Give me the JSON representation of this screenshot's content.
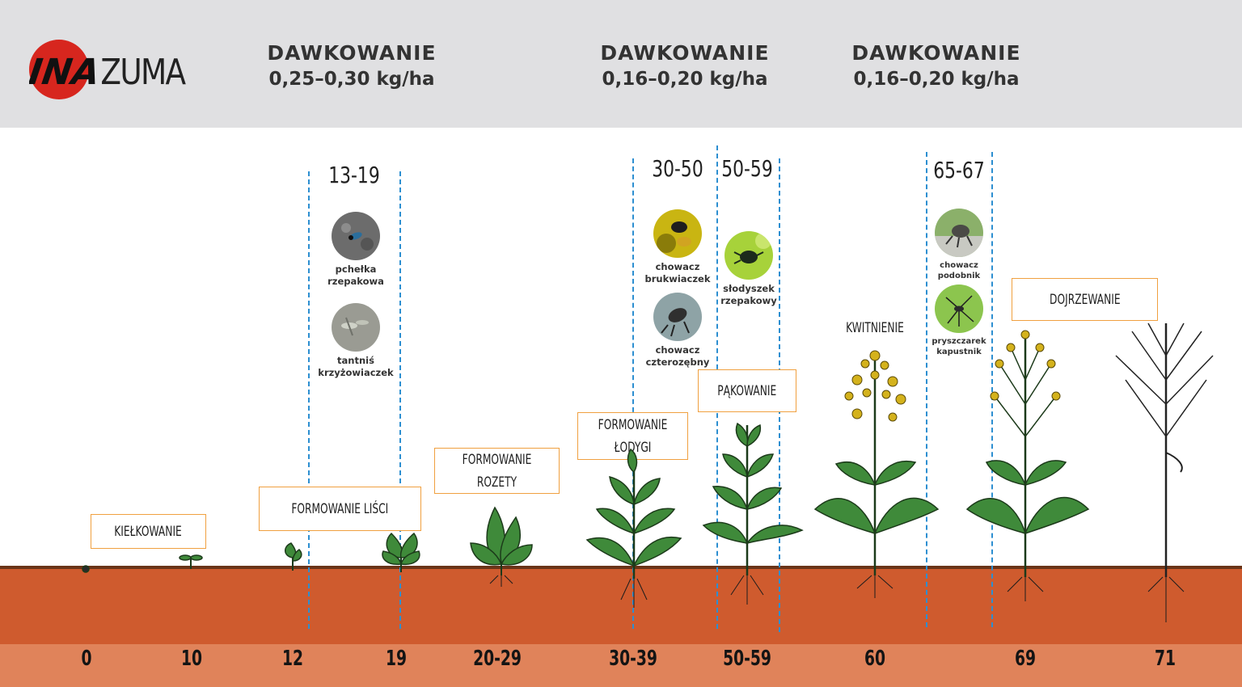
{
  "brand": {
    "name": "INAZUMA",
    "logo_red": "INA",
    "logo_rest": "ZUMA"
  },
  "dosages": [
    {
      "title": "DAWKOWANIE",
      "value": "0,25–0,30 kg/ha"
    },
    {
      "title": "DAWKOWANIE",
      "value": "0,16–0,20 kg/ha"
    },
    {
      "title": "DAWKOWANIE",
      "value": "0,16–0,20 kg/ha"
    }
  ],
  "ranges": [
    "13-19",
    "30-50",
    "50-59",
    "65-67"
  ],
  "pests": [
    {
      "label": "pchełka\nrzepakowa",
      "icon": "flea-beetle-icon"
    },
    {
      "label": "tantniś\nkrzyżowiaczek",
      "icon": "moth-icon"
    },
    {
      "label": "chowacz\nbrukwiaczek",
      "icon": "weevil-icon"
    },
    {
      "label": "chowacz\nczterozębny",
      "icon": "weevil-icon"
    },
    {
      "label": "słodyszek\nrzepakowy",
      "icon": "pollen-beetle-icon"
    },
    {
      "label": "chowacz\npodobnik",
      "icon": "weevil-icon"
    },
    {
      "label": "pryszczarek\nkapustnik",
      "icon": "midge-icon"
    }
  ],
  "stages": [
    "KIEŁKOWANIE",
    "FORMOWANIE LIŚCI",
    "FORMOWANIE\nROZETY",
    "FORMOWANIE\nŁODYGI",
    "PĄKOWANIE",
    "KWITNIENIE",
    "DOJRZEWANIE"
  ],
  "scale": [
    "0",
    "10",
    "12",
    "19",
    "20-29",
    "30-39",
    "50-59",
    "60",
    "69",
    "71"
  ],
  "colors": {
    "header_bg": "#e0e0e2",
    "soil": "#cf5b2e",
    "scale_bg": "#e0835a",
    "dashed_line": "#2d8fd1",
    "box_border": "#f0a040",
    "logo_red": "#d7261e"
  }
}
